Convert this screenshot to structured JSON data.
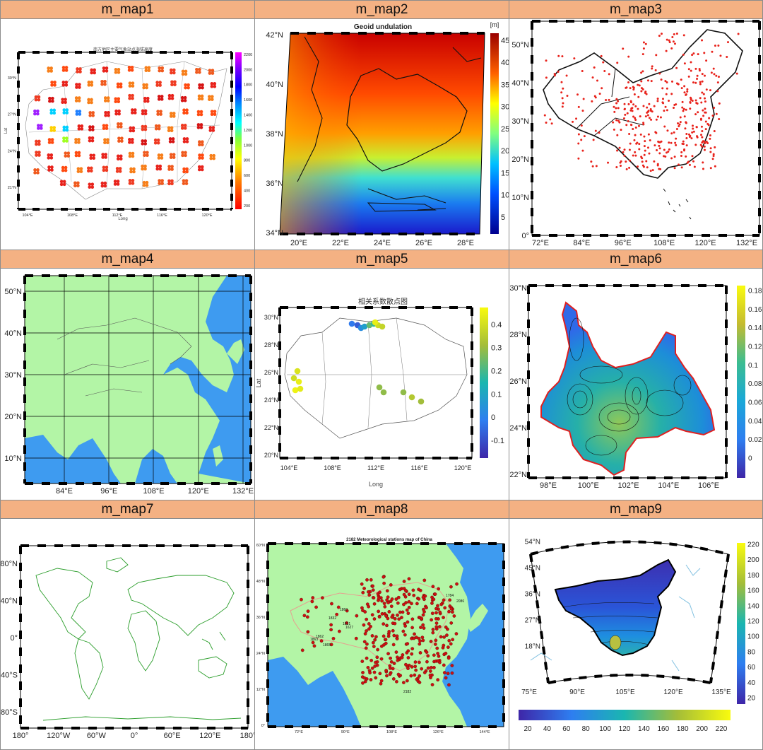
{
  "panels": [
    {
      "title": "m_map1"
    },
    {
      "title": "m_map2"
    },
    {
      "title": "m_map3"
    },
    {
      "title": "m_map4"
    },
    {
      "title": "m_map5"
    },
    {
      "title": "m_map6"
    },
    {
      "title": "m_map7"
    },
    {
      "title": "m_map8"
    },
    {
      "title": "m_map9"
    }
  ],
  "colors": {
    "header_bg": "#f4b183",
    "land": "#b3f5a6",
    "ocean": "#3e9bf0",
    "station_red": "#e8231c"
  },
  "chart_data": [
    {
      "type": "scatter",
      "title": "南方地区主要气象站点海拔高度",
      "xlabel": "Long",
      "ylabel": "Lat",
      "xticks": [
        "104°E",
        "108°E",
        "112°E",
        "116°E",
        "120°E"
      ],
      "yticks": [
        "30°N",
        "27°N",
        "24°N",
        "21°N"
      ],
      "colorbar": {
        "ticks": [
          "2200",
          "2000",
          "1800",
          "1600",
          "1400",
          "1200",
          "1000",
          "800",
          "600",
          "400",
          "200"
        ],
        "range": [
          0,
          2200
        ]
      }
    },
    {
      "type": "heatmap",
      "title": "Geoid undulation",
      "unit": "[m]",
      "xticks": [
        "20°E",
        "22°E",
        "24°E",
        "26°E",
        "28°E"
      ],
      "yticks": [
        "42°N",
        "40°N",
        "38°N",
        "36°N",
        "34°N"
      ],
      "colorbar": {
        "ticks": [
          "45",
          "40",
          "35",
          "30",
          "25",
          "20",
          "15",
          "10",
          "5"
        ],
        "range": [
          2,
          47
        ]
      }
    },
    {
      "type": "scatter",
      "xticks": [
        "72°E",
        "84°E",
        "96°E",
        "108°E",
        "120°E",
        "132°E"
      ],
      "yticks": [
        "50°N",
        "40°N",
        "30°N",
        "20°N",
        "10°N",
        "0°"
      ]
    },
    {
      "type": "map",
      "xticks": [
        "84°E",
        "96°E",
        "108°E",
        "120°E",
        "132°E"
      ],
      "yticks": [
        "50°N",
        "40°N",
        "30°N",
        "20°N",
        "10°N"
      ]
    },
    {
      "type": "scatter",
      "title": "相关系数散点图",
      "xlabel": "Long",
      "ylabel": "Lat",
      "xticks": [
        "104°E",
        "108°E",
        "112°E",
        "116°E",
        "120°E"
      ],
      "yticks": [
        "30°N",
        "28°N",
        "26°N",
        "24°N",
        "22°N",
        "20°N"
      ],
      "colorbar": {
        "ticks": [
          "0.4",
          "0.3",
          "0.2",
          "0.1",
          "0",
          "-0.1"
        ],
        "range": [
          -0.15,
          0.48
        ]
      }
    },
    {
      "type": "heatmap",
      "xticks": [
        "98°E",
        "100°E",
        "102°E",
        "104°E",
        "106°E"
      ],
      "yticks": [
        "30°N",
        "28°N",
        "26°N",
        "24°N",
        "22°N"
      ],
      "colorbar": {
        "ticks": [
          "0.18",
          "0.16",
          "0.14",
          "0.12",
          "0.1",
          "0.08",
          "0.06",
          "0.04",
          "0.02",
          "0"
        ],
        "range": [
          -0.012,
          0.188
        ]
      }
    },
    {
      "type": "map",
      "xticks": [
        "180°",
        "120°W",
        "60°W",
        "0°",
        "60°E",
        "120°E",
        "180°"
      ],
      "yticks": [
        "80°N",
        "40°N",
        "0°",
        "40°S",
        "80°S"
      ]
    },
    {
      "type": "scatter",
      "title": "2182 Meteorological stations map of China",
      "xticks": [
        "72°E",
        "90°E",
        "108°E",
        "126°E",
        "144°E"
      ],
      "yticks": [
        "60°N",
        "48°N",
        "36°N",
        "24°N",
        "12°N",
        "0°"
      ],
      "station_labels": [
        "1863",
        "1862",
        "1865",
        "1832",
        "1860",
        "1627",
        "1831",
        "2182",
        "1784",
        "2086"
      ]
    },
    {
      "type": "heatmap",
      "xticks": [
        "75°E",
        "90°E",
        "105°E",
        "120°E",
        "135°E"
      ],
      "yticks": [
        "54°N",
        "45°N",
        "36°N",
        "27°N",
        "18°N"
      ],
      "colorbar_right": {
        "ticks": [
          "220",
          "200",
          "180",
          "160",
          "140",
          "120",
          "100",
          "80",
          "60",
          "40",
          "20"
        ],
        "range": [
          5,
          222
        ]
      },
      "colorbar_bottom": {
        "ticks": [
          "20",
          "40",
          "60",
          "80",
          "100",
          "120",
          "140",
          "160",
          "180",
          "200",
          "220"
        ],
        "range": [
          5,
          225
        ]
      }
    }
  ]
}
